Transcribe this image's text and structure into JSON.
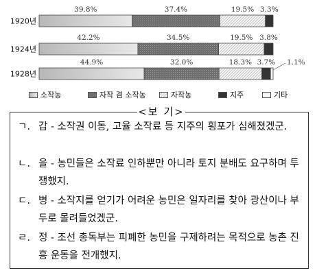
{
  "chart_data": {
    "type": "bar",
    "stacked": true,
    "orientation": "horizontal",
    "categories": [
      "1920년",
      "1924년",
      "1928년"
    ],
    "series": [
      {
        "name": "소작농",
        "values": [
          39.8,
          42.2,
          44.9
        ],
        "color": "#cfcfcf",
        "labels": [
          "39.8%",
          "42.2%",
          "44.9%"
        ]
      },
      {
        "name": "자작 겸 소작농",
        "values": [
          37.4,
          34.5,
          32.0
        ],
        "color": "#7a7a7a",
        "labels": [
          "37.4%",
          "34.5%",
          "32.0%"
        ]
      },
      {
        "name": "자작농",
        "values": [
          19.5,
          19.5,
          18.3
        ],
        "color": "#eeeeee",
        "labels": [
          "19.5%",
          "19.5%",
          "18.3%"
        ]
      },
      {
        "name": "지주",
        "values": [
          3.3,
          3.8,
          3.7
        ],
        "color": "#3a3a3a",
        "labels": [
          "3.3%",
          "3.8%",
          "3.7%"
        ]
      },
      {
        "name": "기타",
        "values": [
          0,
          0,
          1.1
        ],
        "color": "#e6e6e6",
        "labels": [
          "",
          "",
          "1.1%"
        ]
      }
    ],
    "xlim": [
      0,
      100
    ]
  },
  "box": {
    "title": "<보 기>",
    "items": [
      {
        "mark": "ㄱ.",
        "text": "갑 - 소작권 이동, 고율 소작료 등 지주의 횡포가 심해졌겠군."
      },
      {
        "mark": "ㄴ.",
        "text": "을 - 농민들은 소작료 인하뿐만 아니라 토지 분배도 요구하며 투쟁했지."
      },
      {
        "mark": "ㄷ.",
        "text": "병 - 소작지를 얻기가 어려운 농민은 일자리를 찾아 광산이나 부두로 몰려들었겠군."
      },
      {
        "mark": "ㄹ.",
        "text": "정 - 조선 총독부는 피폐한 농민을 구제하려는 목적으로 농촌 진흥 운동을 전개했지."
      }
    ]
  }
}
